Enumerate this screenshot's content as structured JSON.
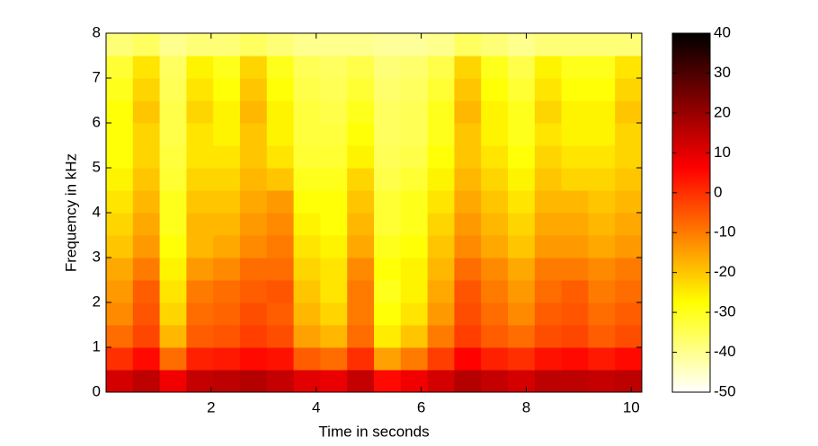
{
  "chart_data": {
    "type": "heatmap",
    "xlabel": "Time in seconds",
    "ylabel": "Frequency in kHz",
    "xlim": [
      0,
      10.2
    ],
    "xticks": [
      2,
      4,
      6,
      8,
      10
    ],
    "ylim": [
      0,
      8
    ],
    "yticks": [
      0,
      1,
      2,
      3,
      4,
      5,
      6,
      7,
      8
    ],
    "colormap": "hot_reversed",
    "clim": [
      -50,
      40
    ],
    "cticks": [
      -50,
      -40,
      -30,
      -20,
      -10,
      0,
      10,
      20,
      30,
      40
    ],
    "x": [
      0.255,
      0.765,
      1.275,
      1.785,
      2.295,
      2.805,
      3.315,
      3.825,
      4.335,
      4.845,
      5.355,
      5.865,
      6.375,
      6.885,
      7.395,
      7.905,
      8.415,
      8.925,
      9.435,
      9.945
    ],
    "y": [
      0.25,
      0.75,
      1.25,
      1.75,
      2.25,
      2.75,
      3.25,
      3.75,
      4.25,
      4.75,
      5.25,
      5.75,
      6.25,
      6.75,
      7.25,
      7.75
    ],
    "z": [
      [
        12,
        15,
        8,
        14,
        15,
        16,
        14,
        10,
        9,
        14,
        5,
        8,
        12,
        16,
        14,
        12,
        15,
        15,
        14,
        15
      ],
      [
        0,
        5,
        -8,
        2,
        3,
        5,
        4,
        -6,
        -8,
        0,
        -15,
        -10,
        -2,
        6,
        2,
        0,
        4,
        5,
        3,
        5
      ],
      [
        -8,
        -3,
        -18,
        -6,
        -5,
        -2,
        -4,
        -15,
        -18,
        -8,
        -25,
        -20,
        -10,
        -2,
        -6,
        -8,
        -4,
        -3,
        -6,
        -4
      ],
      [
        -12,
        -5,
        -22,
        -8,
        -7,
        -4,
        -6,
        -18,
        -22,
        -10,
        -28,
        -24,
        -14,
        -4,
        -8,
        -12,
        -6,
        -5,
        -8,
        -6
      ],
      [
        -14,
        -6,
        -24,
        -10,
        -8,
        -6,
        -5,
        -20,
        -24,
        -10,
        -30,
        -26,
        -16,
        -5,
        -10,
        -14,
        -8,
        -6,
        -10,
        -8
      ],
      [
        -16,
        -10,
        -26,
        -14,
        -12,
        -8,
        -8,
        -22,
        -24,
        -12,
        -28,
        -26,
        -18,
        -8,
        -12,
        -16,
        -10,
        -10,
        -12,
        -10
      ],
      [
        -20,
        -14,
        -28,
        -18,
        -16,
        -12,
        -10,
        -24,
        -26,
        -16,
        -30,
        -28,
        -20,
        -12,
        -16,
        -20,
        -14,
        -14,
        -16,
        -14
      ],
      [
        -22,
        -16,
        -30,
        -18,
        -18,
        -14,
        -12,
        -26,
        -28,
        -18,
        -32,
        -30,
        -22,
        -14,
        -18,
        -22,
        -16,
        -16,
        -18,
        -16
      ],
      [
        -24,
        -18,
        -30,
        -20,
        -20,
        -16,
        -14,
        -28,
        -28,
        -20,
        -32,
        -30,
        -24,
        -16,
        -20,
        -24,
        -18,
        -18,
        -20,
        -18
      ],
      [
        -26,
        -20,
        -32,
        -22,
        -22,
        -18,
        -20,
        -30,
        -30,
        -22,
        -34,
        -32,
        -26,
        -18,
        -22,
        -26,
        -20,
        -22,
        -22,
        -20
      ],
      [
        -28,
        -22,
        -33,
        -24,
        -24,
        -20,
        -24,
        -32,
        -32,
        -26,
        -35,
        -34,
        -28,
        -20,
        -24,
        -28,
        -22,
        -24,
        -24,
        -22
      ],
      [
        -28,
        -22,
        -34,
        -24,
        -26,
        -20,
        -26,
        -33,
        -33,
        -28,
        -36,
        -35,
        -30,
        -20,
        -26,
        -30,
        -24,
        -26,
        -26,
        -22
      ],
      [
        -28,
        -20,
        -34,
        -22,
        -26,
        -18,
        -26,
        -33,
        -34,
        -30,
        -36,
        -35,
        -30,
        -18,
        -26,
        -30,
        -22,
        -26,
        -26,
        -20
      ],
      [
        -30,
        -22,
        -35,
        -24,
        -28,
        -20,
        -28,
        -34,
        -35,
        -32,
        -37,
        -36,
        -32,
        -20,
        -28,
        -32,
        -24,
        -28,
        -28,
        -22
      ],
      [
        -32,
        -24,
        -36,
        -26,
        -30,
        -22,
        -30,
        -35,
        -36,
        -34,
        -38,
        -37,
        -34,
        -22,
        -30,
        -34,
        -26,
        -30,
        -30,
        -24
      ],
      [
        -38,
        -36,
        -40,
        -38,
        -38,
        -36,
        -38,
        -40,
        -40,
        -40,
        -41,
        -41,
        -40,
        -36,
        -38,
        -40,
        -38,
        -38,
        -38,
        -38
      ]
    ]
  }
}
